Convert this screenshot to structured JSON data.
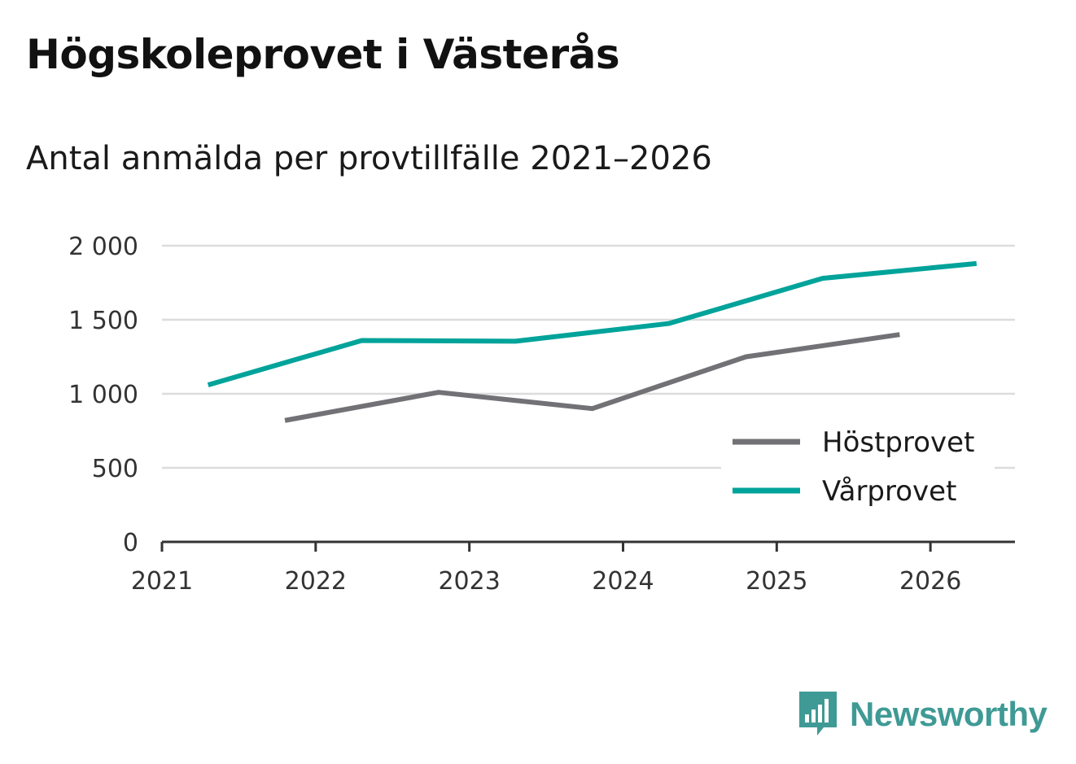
{
  "title": "Högskoleprovet i Västerås",
  "subtitle": "Antal anmälda per provtillfälle 2021–2026",
  "brand": {
    "name": "Newsworthy",
    "color": "#3f9a95"
  },
  "chart_data": {
    "type": "line",
    "title": "Högskoleprovet i Västerås",
    "subtitle": "Antal anmälda per provtillfälle 2021–2026",
    "xlabel": "",
    "ylabel": "",
    "xlim": [
      2021,
      2026.55
    ],
    "ylim": [
      0,
      2000
    ],
    "grid": true,
    "legend_position": "bottom-right",
    "x_ticks": [
      2021,
      2022,
      2023,
      2024,
      2025,
      2026
    ],
    "x_tick_labels": [
      "2021",
      "2022",
      "2023",
      "2024",
      "2025",
      "2026"
    ],
    "y_ticks": [
      0,
      500,
      1000,
      1500,
      2000
    ],
    "y_tick_labels": [
      "0",
      "500",
      "1 000",
      "1 500",
      "2 000"
    ],
    "series": [
      {
        "name": "Höstprovet",
        "color": "#727176",
        "x": [
          2021.8,
          2022.8,
          2023.8,
          2024.8,
          2025.8
        ],
        "y": [
          820,
          1010,
          900,
          1250,
          1400
        ]
      },
      {
        "name": "Vårprovet",
        "color": "#00a39a",
        "x": [
          2021.3,
          2022.3,
          2023.3,
          2024.3,
          2025.3,
          2026.3
        ],
        "y": [
          1060,
          1360,
          1355,
          1475,
          1780,
          1880
        ]
      }
    ]
  }
}
